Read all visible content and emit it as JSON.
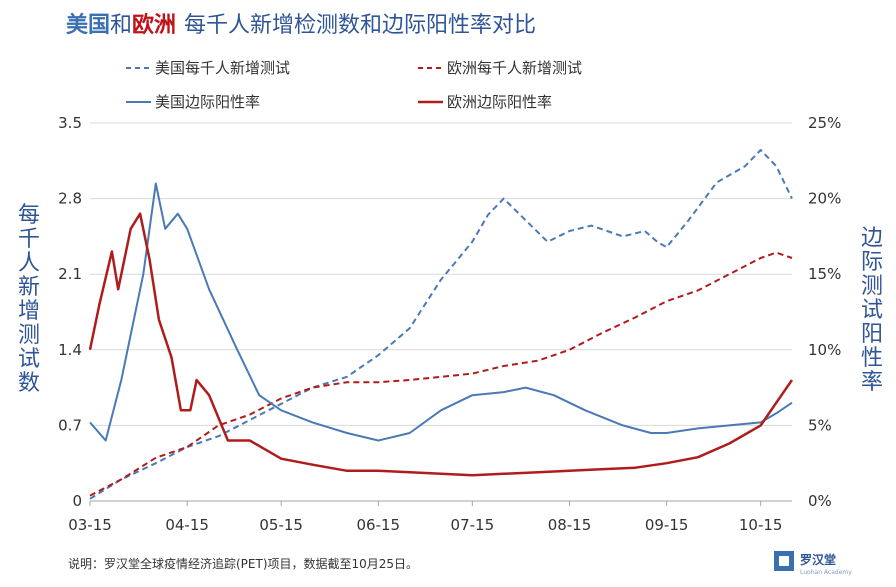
{
  "chart_data": {
    "type": "line",
    "title": {
      "us": "美国",
      "and": "和",
      "eu": "欧洲",
      "rest": "每千人新增检测数和边际阳性率对比"
    },
    "ylabel_left": "每千人新增测试数",
    "ylabel_right": "边际测试阳性率",
    "y_left": {
      "range": [
        0,
        3.5
      ],
      "ticks": [
        "0",
        "0.7",
        "1.4",
        "2.1",
        "2.8",
        "3.5"
      ]
    },
    "y_right": {
      "range": [
        0,
        0.25
      ],
      "ticks": [
        "0%",
        "5%",
        "10%",
        "15%",
        "20%",
        "25%"
      ]
    },
    "x_ticks": [
      "03-15",
      "04-15",
      "05-15",
      "06-15",
      "07-15",
      "08-15",
      "09-15",
      "10-15"
    ],
    "x_range": [
      "03-15",
      "10-25"
    ],
    "grid": "horizontal",
    "legend_position": "top",
    "colors": {
      "us": "#4a7ab5",
      "eu": "#b01c1c"
    },
    "series": [
      {
        "name": "美国每千人新增测试",
        "axis": "left",
        "style": "dashed",
        "color": "#4a7ab5",
        "points": [
          [
            "03-15",
            0.02
          ],
          [
            "03-25",
            0.2
          ],
          [
            "04-05",
            0.35
          ],
          [
            "04-15",
            0.5
          ],
          [
            "04-25",
            0.6
          ],
          [
            "05-05",
            0.75
          ],
          [
            "05-15",
            0.9
          ],
          [
            "05-25",
            1.05
          ],
          [
            "06-05",
            1.15
          ],
          [
            "06-15",
            1.35
          ],
          [
            "06-25",
            1.6
          ],
          [
            "07-05",
            2.05
          ],
          [
            "07-15",
            2.4
          ],
          [
            "07-20",
            2.65
          ],
          [
            "07-25",
            2.8
          ],
          [
            "08-01",
            2.6
          ],
          [
            "08-08",
            2.4
          ],
          [
            "08-15",
            2.5
          ],
          [
            "08-22",
            2.55
          ],
          [
            "09-01",
            2.45
          ],
          [
            "09-08",
            2.5
          ],
          [
            "09-12",
            2.4
          ],
          [
            "09-15",
            2.35
          ],
          [
            "09-22",
            2.6
          ],
          [
            "10-01",
            2.95
          ],
          [
            "10-10",
            3.1
          ],
          [
            "10-15",
            3.25
          ],
          [
            "10-20",
            3.1
          ],
          [
            "10-25",
            2.8
          ]
        ]
      },
      {
        "name": "欧洲每千人新增测试",
        "axis": "left",
        "style": "dashed",
        "color": "#b01c1c",
        "points": [
          [
            "03-15",
            0.05
          ],
          [
            "03-25",
            0.2
          ],
          [
            "04-05",
            0.4
          ],
          [
            "04-15",
            0.5
          ],
          [
            "04-25",
            0.7
          ],
          [
            "05-05",
            0.8
          ],
          [
            "05-15",
            0.95
          ],
          [
            "05-25",
            1.05
          ],
          [
            "06-05",
            1.1
          ],
          [
            "06-15",
            1.1
          ],
          [
            "06-25",
            1.12
          ],
          [
            "07-05",
            1.15
          ],
          [
            "07-15",
            1.18
          ],
          [
            "07-25",
            1.25
          ],
          [
            "08-05",
            1.3
          ],
          [
            "08-15",
            1.4
          ],
          [
            "08-25",
            1.55
          ],
          [
            "09-05",
            1.7
          ],
          [
            "09-15",
            1.85
          ],
          [
            "09-25",
            1.95
          ],
          [
            "10-05",
            2.1
          ],
          [
            "10-15",
            2.25
          ],
          [
            "10-20",
            2.3
          ],
          [
            "10-25",
            2.25
          ]
        ]
      },
      {
        "name": "美国边际阳性率",
        "axis": "right",
        "style": "solid",
        "color": "#4a7ab5",
        "points": [
          [
            "03-15",
            0.052
          ],
          [
            "03-20",
            0.04
          ],
          [
            "03-25",
            0.08
          ],
          [
            "04-01",
            0.15
          ],
          [
            "04-05",
            0.21
          ],
          [
            "04-08",
            0.18
          ],
          [
            "04-12",
            0.19
          ],
          [
            "04-15",
            0.18
          ],
          [
            "04-22",
            0.14
          ],
          [
            "05-01",
            0.1
          ],
          [
            "05-08",
            0.07
          ],
          [
            "05-15",
            0.06
          ],
          [
            "05-25",
            0.052
          ],
          [
            "06-05",
            0.045
          ],
          [
            "06-15",
            0.04
          ],
          [
            "06-25",
            0.045
          ],
          [
            "07-05",
            0.06
          ],
          [
            "07-15",
            0.07
          ],
          [
            "07-25",
            0.072
          ],
          [
            "08-01",
            0.075
          ],
          [
            "08-10",
            0.07
          ],
          [
            "08-20",
            0.06
          ],
          [
            "09-01",
            0.05
          ],
          [
            "09-10",
            0.045
          ],
          [
            "09-15",
            0.045
          ],
          [
            "09-25",
            0.048
          ],
          [
            "10-05",
            0.05
          ],
          [
            "10-15",
            0.052
          ],
          [
            "10-20",
            0.058
          ],
          [
            "10-25",
            0.065
          ]
        ]
      },
      {
        "name": "欧洲边际阳性率",
        "axis": "right",
        "style": "solid",
        "color": "#b01c1c",
        "points": [
          [
            "03-15",
            0.1
          ],
          [
            "03-18",
            0.13
          ],
          [
            "03-22",
            0.165
          ],
          [
            "03-24",
            0.14
          ],
          [
            "03-28",
            0.18
          ],
          [
            "03-31",
            0.19
          ],
          [
            "04-03",
            0.16
          ],
          [
            "04-06",
            0.12
          ],
          [
            "04-10",
            0.095
          ],
          [
            "04-13",
            0.06
          ],
          [
            "04-16",
            0.06
          ],
          [
            "04-18",
            0.08
          ],
          [
            "04-22",
            0.07
          ],
          [
            "04-28",
            0.04
          ],
          [
            "05-05",
            0.04
          ],
          [
            "05-15",
            0.028
          ],
          [
            "05-25",
            0.024
          ],
          [
            "06-05",
            0.02
          ],
          [
            "06-15",
            0.02
          ],
          [
            "06-25",
            0.019
          ],
          [
            "07-05",
            0.018
          ],
          [
            "07-15",
            0.017
          ],
          [
            "07-25",
            0.018
          ],
          [
            "08-05",
            0.019
          ],
          [
            "08-15",
            0.02
          ],
          [
            "08-25",
            0.021
          ],
          [
            "09-05",
            0.022
          ],
          [
            "09-15",
            0.025
          ],
          [
            "09-25",
            0.029
          ],
          [
            "10-05",
            0.038
          ],
          [
            "10-15",
            0.05
          ],
          [
            "10-20",
            0.065
          ],
          [
            "10-25",
            0.08
          ]
        ]
      }
    ]
  },
  "footnote": "说明：罗汉堂全球疫情经济追踪(PET)项目，数据截至10月25日。",
  "logo": {
    "text": "罗汉堂",
    "subtext": "Luohan Academy"
  }
}
